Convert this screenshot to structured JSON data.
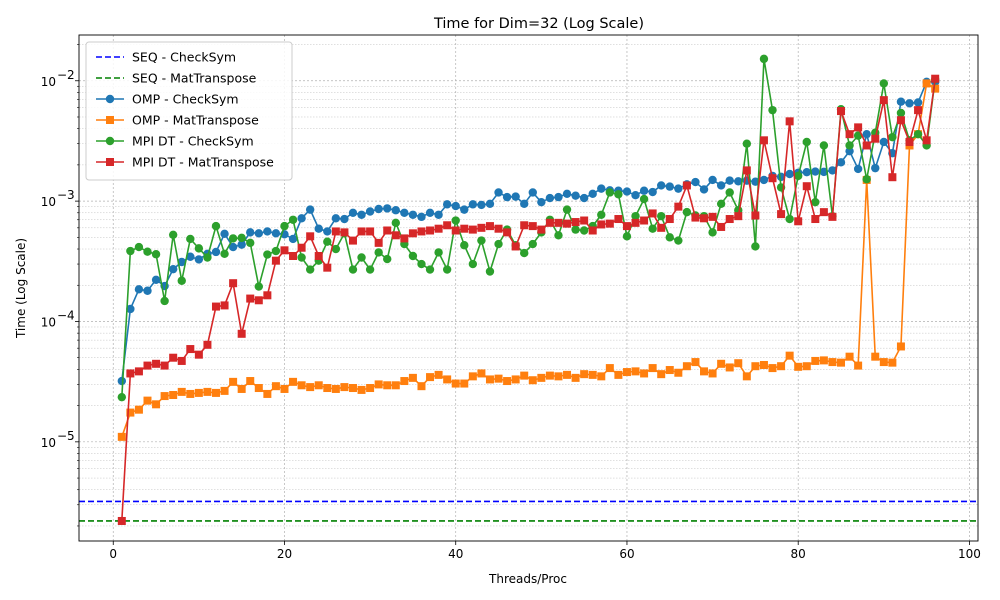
{
  "chart_data": {
    "type": "line",
    "title": "Time for Dim=32 (Log Scale)",
    "xlabel": "Threads/Proc",
    "ylabel": "Time (Log Scale)",
    "yscale": "log",
    "xlim": [
      -4,
      101
    ],
    "ylim": [
      1.5e-06,
      0.024
    ],
    "xticks": [
      0,
      20,
      40,
      60,
      80,
      100
    ],
    "xtick_labels": [
      "0",
      "20",
      "40",
      "60",
      "80",
      "100"
    ],
    "yticks": [
      1e-05,
      0.0001,
      0.001,
      0.01
    ],
    "ytick_labels": [
      "10",
      "10",
      "10",
      "10"
    ],
    "ytick_exponents": [
      "−5",
      "−4",
      "−3",
      "−2"
    ],
    "grid": true,
    "legend_position": "top-left",
    "hlines": [
      {
        "name": "SEQ - CheckSym",
        "value": 3.2e-06,
        "color": "#0000ff",
        "style": "dashed"
      },
      {
        "name": "SEQ - MatTranspose",
        "value": 2.2e-06,
        "color": "#008000",
        "style": "dashed"
      }
    ],
    "x": [
      1,
      2,
      3,
      4,
      5,
      6,
      7,
      8,
      9,
      10,
      11,
      12,
      13,
      14,
      15,
      16,
      17,
      18,
      19,
      20,
      21,
      22,
      23,
      24,
      25,
      26,
      27,
      28,
      29,
      30,
      31,
      32,
      33,
      34,
      35,
      36,
      37,
      38,
      39,
      40,
      41,
      42,
      43,
      44,
      45,
      46,
      47,
      48,
      49,
      50,
      51,
      52,
      53,
      54,
      55,
      56,
      57,
      58,
      59,
      60,
      61,
      62,
      63,
      64,
      65,
      66,
      67,
      68,
      69,
      70,
      71,
      72,
      73,
      74,
      75,
      76,
      77,
      78,
      79,
      80,
      81,
      82,
      83,
      84,
      85,
      86,
      87,
      88,
      89,
      90,
      91,
      92,
      93,
      94,
      95,
      96
    ],
    "series": [
      {
        "name": "OMP - CheckSym",
        "color": "#1f77b4",
        "marker": "circle",
        "values": [
          3.2e-05,
          0.000127,
          0.000185,
          0.00018,
          0.000222,
          0.000197,
          0.000272,
          0.000312,
          0.000345,
          0.000328,
          0.000365,
          0.000378,
          0.000535,
          0.000415,
          0.000435,
          0.00055,
          0.00054,
          0.00056,
          0.00054,
          0.00053,
          0.000485,
          0.00072,
          0.00085,
          0.00059,
          0.00056,
          0.00072,
          0.00071,
          0.0008,
          0.00077,
          0.00082,
          0.00086,
          0.00087,
          0.00084,
          0.0008,
          0.00077,
          0.00074,
          0.0008,
          0.00077,
          0.00094,
          0.00091,
          0.00085,
          0.00094,
          0.00093,
          0.00095,
          0.00118,
          0.00108,
          0.00109,
          0.00095,
          0.00118,
          0.00098,
          0.00106,
          0.00108,
          0.00115,
          0.00111,
          0.00106,
          0.00115,
          0.00127,
          0.00123,
          0.00122,
          0.0012,
          0.00112,
          0.00122,
          0.00119,
          0.00135,
          0.00132,
          0.00127,
          0.00138,
          0.00144,
          0.00125,
          0.0015,
          0.00135,
          0.00148,
          0.00146,
          0.00148,
          0.00145,
          0.0015,
          0.00162,
          0.00159,
          0.00168,
          0.00172,
          0.00174,
          0.00176,
          0.00175,
          0.0018,
          0.0021,
          0.0026,
          0.00185,
          0.0036,
          0.00188,
          0.0031,
          0.0025,
          0.0067,
          0.0065,
          0.0066,
          0.0098,
          0.0098
        ]
      },
      {
        "name": "OMP - MatTranspose",
        "color": "#ff7f0e",
        "marker": "square",
        "values": [
          1.1e-05,
          1.75e-05,
          1.85e-05,
          2.2e-05,
          2.05e-05,
          2.4e-05,
          2.45e-05,
          2.6e-05,
          2.5e-05,
          2.55e-05,
          2.6e-05,
          2.55e-05,
          2.65e-05,
          3.15e-05,
          2.75e-05,
          3.2e-05,
          2.8e-05,
          2.5e-05,
          2.9e-05,
          2.75e-05,
          3.15e-05,
          2.95e-05,
          2.85e-05,
          2.95e-05,
          2.8e-05,
          2.75e-05,
          2.85e-05,
          2.8e-05,
          2.7e-05,
          2.8e-05,
          3e-05,
          2.95e-05,
          2.95e-05,
          3.2e-05,
          3.4e-05,
          2.9e-05,
          3.45e-05,
          3.6e-05,
          3.3e-05,
          3.05e-05,
          3.05e-05,
          3.5e-05,
          3.7e-05,
          3.3e-05,
          3.35e-05,
          3.2e-05,
          3.3e-05,
          3.55e-05,
          3.25e-05,
          3.4e-05,
          3.55e-05,
          3.5e-05,
          3.6e-05,
          3.4e-05,
          3.65e-05,
          3.6e-05,
          3.5e-05,
          4.1e-05,
          3.6e-05,
          3.8e-05,
          3.85e-05,
          3.7e-05,
          4.1e-05,
          3.65e-05,
          3.95e-05,
          3.75e-05,
          4.25e-05,
          4.6e-05,
          3.85e-05,
          3.7e-05,
          4.45e-05,
          4.15e-05,
          4.5e-05,
          3.5e-05,
          4.25e-05,
          4.35e-05,
          4.1e-05,
          4.25e-05,
          5.2e-05,
          4.2e-05,
          4.25e-05,
          4.7e-05,
          4.75e-05,
          4.6e-05,
          4.55e-05,
          5.1e-05,
          4.3e-05,
          0.0015,
          5.1e-05,
          4.6e-05,
          4.55e-05,
          6.2e-05,
          0.0029,
          0.0036,
          0.0095,
          0.0086
        ]
      },
      {
        "name": "MPI DT - CheckSym",
        "color": "#2ca02c",
        "marker": "circle",
        "values": [
          2.35e-05,
          0.000385,
          0.000415,
          0.00038,
          0.000362,
          0.000148,
          0.000525,
          0.000218,
          0.000485,
          0.000405,
          0.00034,
          0.00062,
          0.000365,
          0.00049,
          0.000495,
          0.00045,
          0.000195,
          0.00036,
          0.000385,
          0.00062,
          0.0007,
          0.00034,
          0.00027,
          0.00032,
          0.00046,
          0.0004,
          0.00054,
          0.00027,
          0.00034,
          0.00027,
          0.000375,
          0.00033,
          0.00066,
          0.00044,
          0.00035,
          0.0003,
          0.00027,
          0.000375,
          0.00027,
          0.00069,
          0.00043,
          0.0003,
          0.00047,
          0.00026,
          0.00044,
          0.00058,
          0.00043,
          0.00037,
          0.00044,
          0.00055,
          0.0007,
          0.00052,
          0.00085,
          0.00058,
          0.00057,
          0.00062,
          0.00077,
          0.00118,
          0.00114,
          0.00051,
          0.00075,
          0.00104,
          0.00059,
          0.00075,
          0.0005,
          0.00047,
          0.00081,
          0.00076,
          0.00075,
          0.00055,
          0.00095,
          0.00118,
          0.00084,
          0.003,
          0.00042,
          0.0152,
          0.0057,
          0.0013,
          0.00071,
          0.00162,
          0.0031,
          0.00098,
          0.0029,
          0.00075,
          0.0058,
          0.0029,
          0.0035,
          0.00152,
          0.0037,
          0.0095,
          0.0034,
          0.0054,
          0.0032,
          0.0036,
          0.0029,
          0.0103
        ]
      },
      {
        "name": "MPI DT - MatTranspose",
        "color": "#d62728",
        "marker": "square",
        "values": [
          2.2e-06,
          3.7e-05,
          3.85e-05,
          4.3e-05,
          4.45e-05,
          4.3e-05,
          5e-05,
          4.7e-05,
          5.9e-05,
          5.3e-05,
          6.4e-05,
          0.000133,
          0.000136,
          0.000208,
          7.9e-05,
          0.000155,
          0.00015,
          0.000165,
          0.00032,
          0.00039,
          0.00035,
          0.00041,
          0.00051,
          0.00035,
          0.00028,
          0.00056,
          0.00055,
          0.00047,
          0.00056,
          0.00056,
          0.00045,
          0.00057,
          0.00052,
          0.00049,
          0.00054,
          0.00056,
          0.00057,
          0.00059,
          0.00063,
          0.00057,
          0.00059,
          0.00058,
          0.0006,
          0.00062,
          0.00059,
          0.00055,
          0.00042,
          0.00063,
          0.00062,
          0.00058,
          0.00066,
          0.00066,
          0.00065,
          0.00067,
          0.00069,
          0.00057,
          0.00064,
          0.00065,
          0.00071,
          0.00062,
          0.00066,
          0.00069,
          0.00079,
          0.0006,
          0.00071,
          0.0009,
          0.00135,
          0.00073,
          0.00072,
          0.00074,
          0.00061,
          0.00071,
          0.00075,
          0.0018,
          0.00076,
          0.0032,
          0.00155,
          0.00078,
          0.0046,
          0.00068,
          0.00133,
          0.00071,
          0.00081,
          0.00074,
          0.0056,
          0.0036,
          0.0041,
          0.0029,
          0.0033,
          0.0069,
          0.00158,
          0.0047,
          0.0031,
          0.0057,
          0.0032,
          0.0104
        ]
      }
    ]
  }
}
